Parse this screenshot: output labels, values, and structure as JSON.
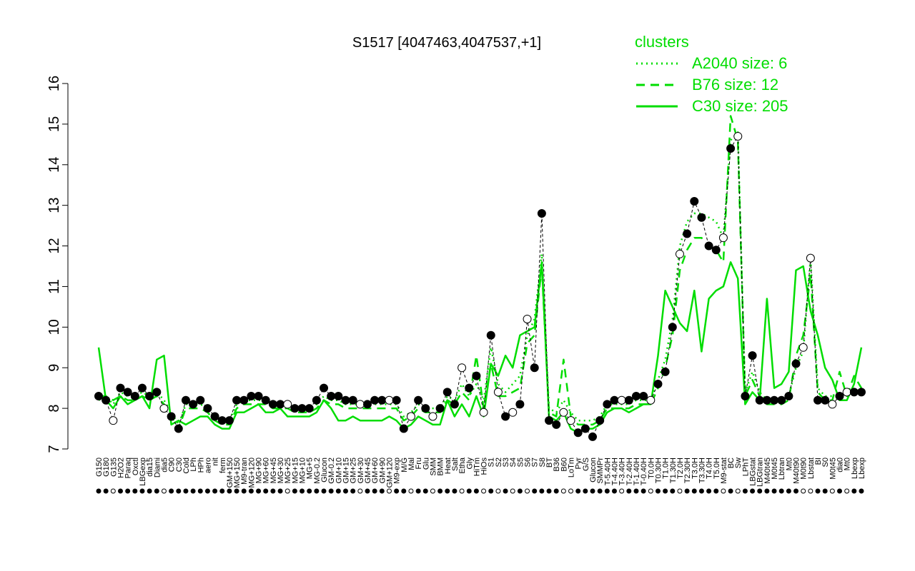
{
  "chart_data": {
    "type": "line",
    "title": "S1517 [4047463,4047537,+1]",
    "xlabel": "",
    "ylabel": "",
    "ylim": [
      7,
      16
    ],
    "yticks": [
      7,
      8,
      9,
      10,
      11,
      12,
      13,
      14,
      15,
      16
    ],
    "grid": false,
    "legend": {
      "title": "clusters",
      "position": "top-right",
      "color": "#00dd00",
      "entries": [
        {
          "label": "A2040 size: 6",
          "style": "dotted"
        },
        {
          "label": "B76 size: 12",
          "style": "dashed"
        },
        {
          "label": "C30 size: 205",
          "style": "solid"
        }
      ]
    },
    "x_tick_labels": [
      "G150",
      "G180",
      "G135",
      "H2O2",
      "Paraq",
      "Oxctl",
      "LBGexp",
      "dia15",
      "Diami",
      "dia5",
      "C90",
      "C30",
      "Cold",
      "LPh",
      "HPh",
      "aero",
      "nit",
      "ferm",
      "GM+150",
      "MG+150",
      "M9-tran",
      "MG+120",
      "MG+90",
      "MG+60",
      "MG+45",
      "MG+30",
      "MG+25",
      "MG+15",
      "MG+10",
      "MG+5",
      "MG-0.2",
      "Glucon",
      "GM-0.2",
      "GM+10",
      "GM+15",
      "GM+25",
      "GM+30",
      "GM+45",
      "GM+60",
      "GM+90",
      "GM+120",
      "M9-exp",
      "M/G",
      "Mal",
      "Fru",
      "Glu",
      "SMM",
      "BMM",
      "Heat",
      "Salt",
      "Etha",
      "Gly",
      "HiTm",
      "HiOs",
      "S1",
      "S2",
      "S3",
      "S4",
      "S5",
      "S6",
      "S7",
      "S8",
      "BT",
      "B36",
      "B60",
      "LoTm",
      "Pyr",
      "G/S",
      "Glucon",
      "SMMPr",
      "T-5.40H",
      "T-4.40H",
      "T-3.40H",
      "T-2.40H",
      "T-1.40H",
      "T-0.40H",
      "T0.0H",
      "T0.30H",
      "T1.0H",
      "T1.30H",
      "T2.0H",
      "T2.30H",
      "T3.0H",
      "T3.30H",
      "T4.0H",
      "T5.0H",
      "M9-stat",
      "BC",
      "Sw",
      "LPhT",
      "LBGstat",
      "LBGtran",
      "M40t45",
      "M0t45",
      "Lbtran",
      "Mt0",
      "M40t90",
      "M0t90",
      "Lbstat",
      "BI",
      "S0",
      "M0t45",
      "dia0",
      "Mt0",
      "Lbexp",
      "Lbexp"
    ],
    "series": [
      {
        "name": "A2040 size: 6",
        "style": "dotted",
        "color": "#00dd00",
        "values": [
          8.2,
          8.3,
          8.1,
          8.4,
          8.3,
          8.3,
          8.4,
          8.3,
          8.4,
          8.2,
          7.9,
          7.6,
          8.1,
          8.1,
          8.1,
          8.0,
          7.8,
          7.7,
          7.7,
          8.1,
          8.2,
          8.2,
          8.2,
          8.2,
          8.1,
          8.1,
          8.1,
          8.0,
          8.0,
          8.0,
          8.1,
          8.3,
          8.2,
          8.2,
          8.1,
          8.1,
          8.1,
          8.1,
          8.1,
          8.1,
          8.1,
          8.1,
          7.8,
          7.9,
          8.1,
          8.0,
          8.0,
          8.0,
          8.3,
          8.2,
          8.6,
          8.3,
          8.6,
          8.2,
          9.5,
          8.6,
          8.4,
          8.6,
          8.8,
          9.8,
          10.2,
          11.8,
          8.0,
          7.9,
          8.2,
          7.9,
          7.7,
          7.7,
          7.7,
          7.8,
          8.1,
          8.1,
          8.1,
          8.1,
          8.2,
          8.2,
          8.2,
          8.7,
          9.2,
          10.2,
          12.0,
          12.6,
          12.8,
          12.8,
          12.7,
          12.6,
          12.2,
          14.6,
          14.8,
          8.4,
          8.9,
          8.4,
          8.2,
          8.2,
          8.2,
          8.3,
          9.0,
          9.4,
          11.7,
          8.5,
          8.3,
          8.3,
          8.3,
          8.4,
          8.4,
          8.4
        ]
      },
      {
        "name": "B76 size: 12",
        "style": "dashed",
        "color": "#00dd00",
        "values": [
          8.3,
          8.3,
          8.2,
          8.3,
          8.2,
          8.2,
          8.3,
          8.2,
          8.3,
          8.1,
          7.8,
          7.5,
          8.0,
          8.0,
          8.0,
          7.9,
          7.7,
          7.6,
          7.6,
          8.0,
          8.1,
          8.1,
          8.1,
          8.1,
          8.0,
          8.0,
          8.0,
          7.9,
          7.9,
          7.9,
          8.0,
          8.2,
          8.1,
          8.1,
          8.0,
          8.0,
          8.0,
          8.0,
          8.0,
          8.0,
          8.0,
          8.0,
          7.7,
          7.8,
          8.0,
          7.9,
          7.9,
          7.9,
          8.2,
          8.1,
          8.4,
          8.2,
          9.3,
          8.0,
          9.1,
          8.3,
          8.3,
          8.4,
          8.5,
          9.6,
          9.8,
          11.5,
          7.9,
          7.8,
          9.2,
          7.8,
          7.6,
          7.6,
          7.6,
          7.7,
          8.0,
          8.0,
          8.0,
          8.0,
          8.1,
          8.1,
          8.1,
          8.5,
          9.0,
          9.8,
          11.4,
          11.9,
          12.2,
          12.2,
          12.0,
          11.9,
          11.6,
          15.2,
          14.6,
          8.3,
          8.7,
          8.3,
          8.1,
          8.1,
          8.1,
          8.2,
          9.3,
          9.8,
          11.3,
          8.4,
          8.2,
          8.2,
          8.9,
          8.3,
          8.8,
          8.5
        ]
      },
      {
        "name": "C30 size: 205",
        "style": "solid",
        "color": "#00dd00",
        "values": [
          9.5,
          8.2,
          8.0,
          8.3,
          8.1,
          8.2,
          8.3,
          8.0,
          9.2,
          9.3,
          7.6,
          7.7,
          7.6,
          7.7,
          7.8,
          7.8,
          7.6,
          7.5,
          7.5,
          7.9,
          7.9,
          8.0,
          8.1,
          7.9,
          7.9,
          8.0,
          7.8,
          7.8,
          7.8,
          7.8,
          7.9,
          8.2,
          8.0,
          7.7,
          7.7,
          7.8,
          7.7,
          7.7,
          7.7,
          7.7,
          7.8,
          7.7,
          7.5,
          7.6,
          7.8,
          7.7,
          7.6,
          7.6,
          8.2,
          7.8,
          8.1,
          7.8,
          8.3,
          7.8,
          9.1,
          8.8,
          9.3,
          9.0,
          9.8,
          9.9,
          10.0,
          11.6,
          7.8,
          7.7,
          7.9,
          7.5,
          7.4,
          7.5,
          7.5,
          7.6,
          7.9,
          8.0,
          8.0,
          7.9,
          8.0,
          8.1,
          8.1,
          9.3,
          10.9,
          10.5,
          10.1,
          9.9,
          10.9,
          9.4,
          10.7,
          10.9,
          11.0,
          11.6,
          11.2,
          8.1,
          8.4,
          8.2,
          10.7,
          8.5,
          8.6,
          8.9,
          11.4,
          11.5,
          10.4,
          9.8,
          9.0,
          8.7,
          8.2,
          8.2,
          8.6,
          9.5
        ]
      }
    ],
    "points": [
      8.3,
      8.2,
      7.7,
      8.5,
      8.4,
      8.3,
      8.5,
      8.3,
      8.4,
      8.0,
      7.8,
      7.5,
      8.2,
      8.1,
      8.2,
      8.0,
      7.8,
      7.7,
      7.7,
      8.2,
      8.2,
      8.3,
      8.3,
      8.2,
      8.1,
      8.1,
      8.1,
      8.0,
      8.0,
      8.0,
      8.2,
      8.5,
      8.3,
      8.3,
      8.2,
      8.2,
      8.1,
      8.1,
      8.2,
      8.2,
      8.2,
      8.2,
      7.5,
      7.8,
      8.2,
      8.0,
      7.8,
      8.0,
      8.4,
      8.1,
      9.0,
      8.5,
      8.8,
      7.9,
      9.8,
      8.4,
      7.8,
      7.9,
      8.1,
      10.2,
      9.0,
      12.8,
      7.7,
      7.6,
      7.9,
      7.7,
      7.4,
      7.5,
      7.3,
      7.7,
      8.1,
      8.2,
      8.2,
      8.2,
      8.3,
      8.3,
      8.2,
      8.6,
      8.9,
      10.0,
      11.8,
      12.3,
      13.1,
      12.7,
      12.0,
      11.9,
      12.2,
      14.4,
      14.7,
      8.3,
      9.3,
      8.2,
      8.2,
      8.2,
      8.2,
      8.3,
      9.1,
      9.5,
      11.7,
      8.2,
      8.2,
      8.1,
      8.3,
      8.4,
      8.4,
      8.4
    ],
    "hollow_points": [
      2,
      9,
      26,
      36,
      40,
      43,
      46,
      50,
      53,
      55,
      57,
      59,
      64,
      65,
      72,
      76,
      80,
      86,
      88,
      97,
      98,
      101,
      103
    ]
  }
}
